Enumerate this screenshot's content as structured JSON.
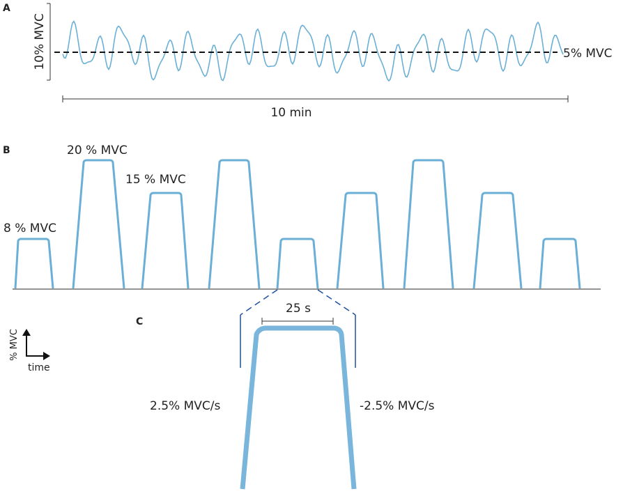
{
  "panel_a": {
    "label": "A",
    "y_axis_label": "10% MVC",
    "baseline_label": "5% MVC",
    "duration_label": "10 min"
  },
  "panel_b": {
    "label": "B",
    "level_labels": [
      "20 % MVC",
      "15 % MVC",
      "8 % MVC"
    ]
  },
  "panel_c": {
    "label": "C",
    "axis_y_label": "% MVC",
    "axis_x_label": "time",
    "plateau_label": "25 s",
    "ramp_up_label": "2.5% MVC/s",
    "ramp_down_label": "-2.5% MVC/s"
  }
}
